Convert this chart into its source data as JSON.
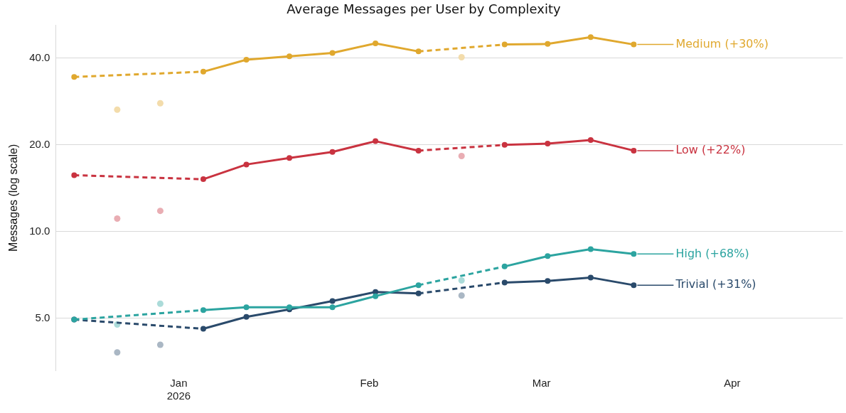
{
  "chart_data": {
    "type": "line",
    "title": "Average Messages per User by Complexity",
    "ylabel": "Messages (log scale)",
    "x": [
      "2025-12-15",
      "2025-12-22",
      "2025-12-29",
      "2026-01-05",
      "2026-01-12",
      "2026-01-19",
      "2026-01-26",
      "2026-02-02",
      "2026-02-09",
      "2026-02-16",
      "2026-02-23",
      "2026-03-02",
      "2026-03-09",
      "2026-03-16"
    ],
    "series": [
      {
        "name": "Medium (+30%)",
        "color": "#e0a82e",
        "values": [
          34.4,
          null,
          null,
          35.9,
          39.5,
          40.6,
          41.7,
          45.0,
          42.2,
          null,
          44.6,
          44.8,
          47.3,
          44.6
        ]
      },
      {
        "name": "Low (+22%)",
        "color": "#c93340",
        "values": [
          15.7,
          null,
          null,
          15.2,
          17.1,
          18.0,
          18.9,
          20.6,
          19.1,
          null,
          20.0,
          20.2,
          20.8,
          19.1
        ]
      },
      {
        "name": "High (+68%)",
        "color": "#2ca4a0",
        "values": [
          4.95,
          null,
          null,
          5.34,
          5.46,
          5.46,
          5.46,
          5.97,
          6.52,
          null,
          7.57,
          8.22,
          8.69,
          8.36
        ]
      },
      {
        "name": "Trivial (+31%)",
        "color": "#2a4a6b",
        "values": [
          4.95,
          null,
          null,
          4.6,
          5.06,
          5.37,
          5.74,
          6.17,
          6.1,
          null,
          6.66,
          6.74,
          6.93,
          6.52
        ]
      },
      {
        "type": "scatter",
        "color": "#f3dcab",
        "x": [
          "2025-12-22",
          "2025-12-29",
          "2026-02-16"
        ],
        "values": [
          26.5,
          27.9,
          40.3
        ]
      },
      {
        "type": "scatter",
        "color": "#e9adb3",
        "x": [
          "2025-12-22",
          "2025-12-29",
          "2026-02-16"
        ],
        "values": [
          11.1,
          11.8,
          18.3
        ]
      },
      {
        "type": "scatter",
        "color": "#abdbd9",
        "x": [
          "2025-12-22",
          "2025-12-29",
          "2026-02-16"
        ],
        "values": [
          4.76,
          5.62,
          6.77
        ]
      },
      {
        "type": "scatter",
        "color": "#aab7c4",
        "x": [
          "2025-12-22",
          "2025-12-29",
          "2026-02-16"
        ],
        "values": [
          3.81,
          4.05,
          6.0
        ]
      }
    ],
    "xlim": [
      "2025-12-12",
      "2026-04-19"
    ],
    "xticks": [
      {
        "value": "2026-01-01",
        "label": "Jan\n2026"
      },
      {
        "value": "2026-02-01",
        "label": "Feb"
      },
      {
        "value": "2026-03-01",
        "label": "Mar"
      },
      {
        "value": "2026-04-01",
        "label": "Apr"
      }
    ],
    "log": true,
    "ylim": [
      3.3,
      52
    ],
    "yticks": [
      {
        "value": 5,
        "label": "5.0"
      },
      {
        "value": 10,
        "label": "10.0"
      },
      {
        "value": 20,
        "label": "20.0"
      },
      {
        "value": 40,
        "label": "40.0"
      }
    ],
    "grid": "y",
    "legend": "right",
    "marker": "circle",
    "line_style": "solid"
  }
}
